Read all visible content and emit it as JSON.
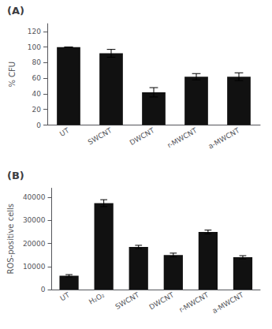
{
  "chart_data": [
    {
      "type": "bar",
      "title": "(A)",
      "categories": [
        "UT",
        "SWCNT",
        "DWCNT",
        "r-MWCNT",
        "a-MWCNT"
      ],
      "values": [
        100,
        92,
        42,
        62,
        62
      ],
      "errors": [
        0,
        5,
        6,
        4,
        5
      ],
      "ylabel": "% CFU",
      "ylim": [
        0,
        130
      ],
      "yticks": [
        0,
        20,
        40,
        60,
        80,
        100,
        120
      ],
      "color": "#111111",
      "grid": false
    },
    {
      "type": "bar",
      "title": "(B)",
      "categories": [
        "UT",
        "H₂O₂",
        "SWCNT",
        "DWCNT",
        "r-MWCNT",
        "a-MWCNT"
      ],
      "values": [
        6000,
        37500,
        18500,
        15000,
        25000,
        14000
      ],
      "errors": [
        500,
        1500,
        700,
        800,
        800,
        700
      ],
      "ylabel": "ROS-positive cells",
      "ylim": [
        0,
        44000
      ],
      "yticks": [
        0,
        10000,
        20000,
        30000,
        40000
      ],
      "color": "#111111",
      "grid": false
    }
  ]
}
